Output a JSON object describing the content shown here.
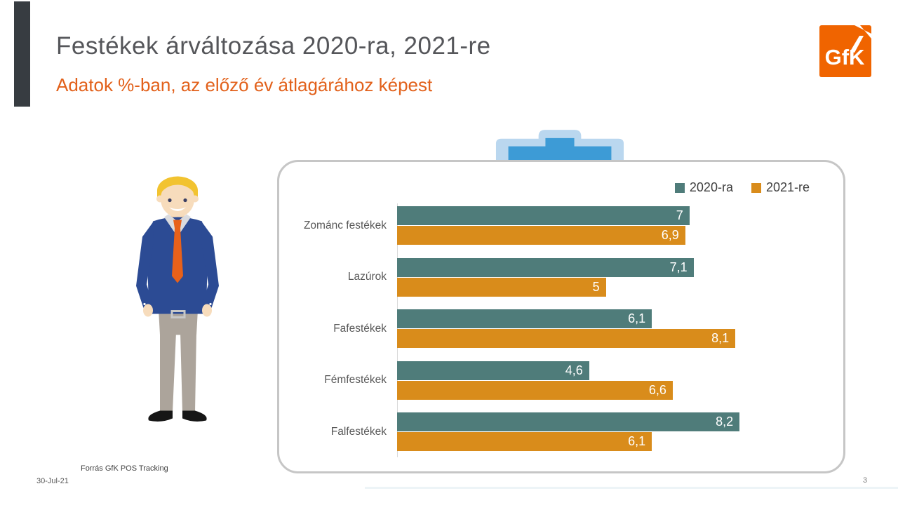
{
  "slide": {
    "title": "Festékek árváltozása 2020-ra, 2021-re",
    "subtitle": "Adatok %-ban, az előző év átlagárához képest",
    "footer_source": "Forrás GfK POS Tracking",
    "footer_date": "30-Jul-21",
    "page_number": "3",
    "logo_text": "GfK"
  },
  "colors": {
    "accent_dark": "#373c41",
    "title_gray": "#55565a",
    "subtitle_orange": "#e2611b",
    "logo_orange": "#f06400",
    "series_2020_teal": "#4f7c7a",
    "series_2021_orange": "#d98c1b",
    "card_border_gray": "#c6c6c6",
    "tray_outer_blue": "#bad7ef",
    "tray_inner_blue": "#3d9bd6"
  },
  "chart_data": {
    "type": "bar",
    "orientation": "horizontal",
    "title": "",
    "xlabel": "",
    "ylabel": "",
    "unit": "% change vs previous year average price",
    "categories": [
      "Zománc festékek",
      "Lazúrok",
      "Fafestékek",
      "Fémfestékek",
      "Falfestékek"
    ],
    "series": [
      {
        "name": "2020-ra",
        "color": "#4f7c7a",
        "values": [
          7,
          7.1,
          6.1,
          4.6,
          8.2
        ],
        "labels": [
          "7",
          "7,1",
          "6,1",
          "4,6",
          "8,2"
        ]
      },
      {
        "name": "2021-re",
        "color": "#d98c1b",
        "values": [
          6.9,
          5,
          8.1,
          6.6,
          6.1
        ],
        "labels": [
          "6,9",
          "5",
          "8,1",
          "6,6",
          "6,1"
        ]
      }
    ],
    "xlim": [
      0,
      8.5
    ],
    "grid": false,
    "legend_position": "top-right",
    "value_labels": "inside-end-white"
  }
}
